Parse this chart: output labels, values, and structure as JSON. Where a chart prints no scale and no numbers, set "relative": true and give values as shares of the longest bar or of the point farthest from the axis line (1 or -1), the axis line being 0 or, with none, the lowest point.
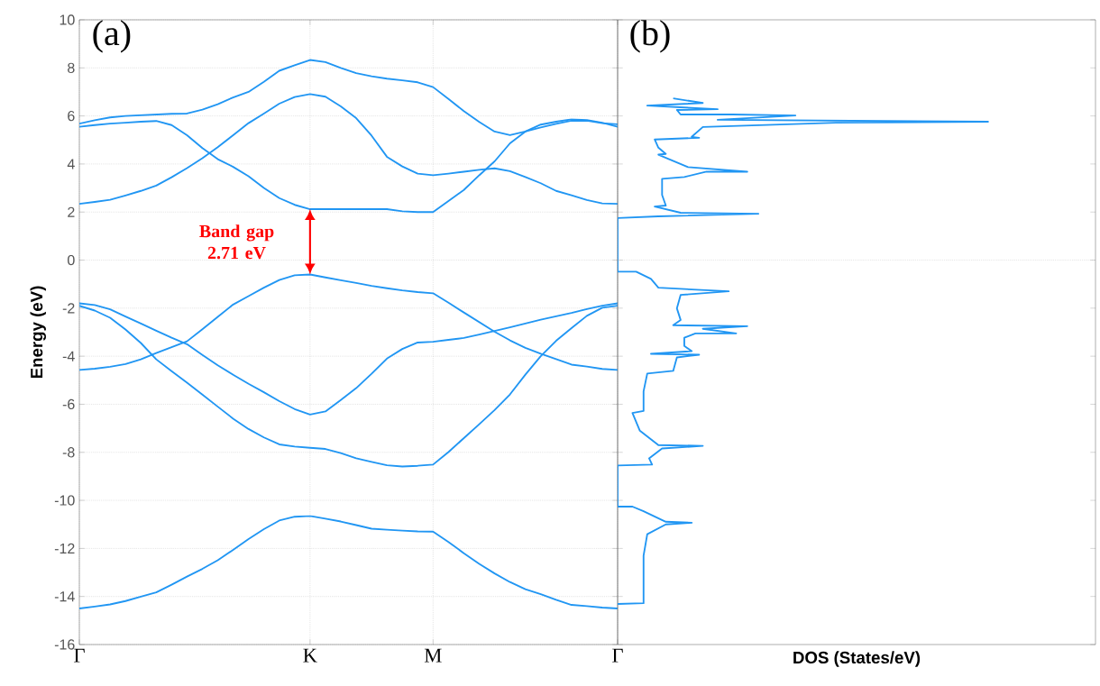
{
  "chart_data": [
    {
      "type": "line",
      "title": "(a)",
      "ylabel": "Energy (eV)",
      "categories": [
        "Γ",
        null,
        null,
        null,
        null,
        null,
        null,
        null,
        null,
        null,
        null,
        null,
        null,
        null,
        null,
        "K",
        null,
        null,
        null,
        null,
        null,
        null,
        null,
        "M",
        null,
        null,
        null,
        null,
        null,
        null,
        null,
        null,
        null,
        null,
        null,
        "Γ"
      ],
      "ylim": [
        -16,
        10
      ],
      "yticks": [
        -16,
        -14,
        -12,
        -10,
        -8,
        -6,
        -4,
        -2,
        0,
        2,
        4,
        6,
        8,
        10
      ],
      "grid": true,
      "marker": "none",
      "series": [
        {
          "color": "#2196f3",
          "values": [
            5.68,
            5.82,
            5.94,
            6.0,
            6.03,
            6.06,
            6.09,
            6.1,
            6.26,
            6.49,
            6.77,
            7.0,
            7.42,
            7.88,
            8.11,
            8.33,
            8.24,
            8.0,
            7.78,
            7.65,
            7.55,
            7.48,
            7.4,
            7.2,
            6.71,
            6.2,
            5.75,
            5.35,
            5.2,
            5.35,
            5.52,
            5.67,
            5.8,
            5.8,
            5.7,
            5.65
          ]
        },
        {
          "color": "#2196f3",
          "values": [
            5.55,
            5.62,
            5.68,
            5.72,
            5.76,
            5.79,
            5.62,
            5.2,
            4.66,
            4.2,
            3.88,
            3.49,
            3.0,
            2.58,
            2.3,
            2.12,
            2.12,
            2.12,
            2.12,
            2.12,
            2.12,
            2.03,
            2.0,
            2.0,
            2.46,
            2.92,
            3.53,
            4.11,
            4.86,
            5.35,
            5.64,
            5.76,
            5.86,
            5.83,
            5.72,
            5.55
          ]
        },
        {
          "color": "#2196f3",
          "values": [
            2.34,
            2.42,
            2.51,
            2.69,
            2.88,
            3.1,
            3.45,
            3.83,
            4.24,
            4.7,
            5.2,
            5.7,
            6.1,
            6.51,
            6.79,
            6.91,
            6.8,
            6.4,
            5.91,
            5.18,
            4.3,
            3.9,
            3.6,
            3.53,
            3.6,
            3.68,
            3.76,
            3.82,
            3.7,
            3.46,
            3.2,
            2.88,
            2.7,
            2.5,
            2.36,
            2.34
          ]
        },
        {
          "color": "#2196f3",
          "values": [
            -4.57,
            -4.52,
            -4.44,
            -4.33,
            -4.13,
            -3.87,
            -3.62,
            -3.38,
            -2.88,
            -2.36,
            -1.85,
            -1.5,
            -1.15,
            -0.83,
            -0.63,
            -0.6,
            -0.72,
            -0.84,
            -0.95,
            -1.07,
            -1.17,
            -1.26,
            -1.33,
            -1.38,
            -1.77,
            -2.18,
            -2.58,
            -2.98,
            -3.34,
            -3.65,
            -3.9,
            -4.12,
            -4.35,
            -4.43,
            -4.53,
            -4.57
          ]
        },
        {
          "color": "#2196f3",
          "values": [
            -1.8,
            -1.87,
            -2.05,
            -2.35,
            -2.64,
            -2.94,
            -3.23,
            -3.5,
            -3.95,
            -4.38,
            -4.77,
            -5.15,
            -5.5,
            -5.87,
            -6.2,
            -6.43,
            -6.3,
            -5.82,
            -5.33,
            -4.73,
            -4.1,
            -3.7,
            -3.43,
            -3.4,
            -3.32,
            -3.24,
            -3.1,
            -2.95,
            -2.8,
            -2.64,
            -2.48,
            -2.34,
            -2.2,
            -2.04,
            -1.9,
            -1.8
          ]
        },
        {
          "color": "#2196f3",
          "values": [
            -1.9,
            -2.1,
            -2.4,
            -2.89,
            -3.45,
            -4.13,
            -4.62,
            -5.1,
            -5.6,
            -6.1,
            -6.6,
            -7.03,
            -7.38,
            -7.67,
            -7.76,
            -7.81,
            -7.86,
            -8.03,
            -8.25,
            -8.4,
            -8.54,
            -8.59,
            -8.56,
            -8.51,
            -7.99,
            -7.41,
            -6.83,
            -6.24,
            -5.59,
            -4.77,
            -4.0,
            -3.36,
            -2.83,
            -2.32,
            -1.98,
            -1.9
          ]
        },
        {
          "color": "#2196f3",
          "values": [
            -14.5,
            -14.42,
            -14.33,
            -14.19,
            -14.01,
            -13.83,
            -13.51,
            -13.17,
            -12.85,
            -12.49,
            -12.06,
            -11.61,
            -11.2,
            -10.84,
            -10.68,
            -10.65,
            -10.76,
            -10.88,
            -11.03,
            -11.18,
            -11.22,
            -11.26,
            -11.29,
            -11.3,
            -11.73,
            -12.2,
            -12.64,
            -13.04,
            -13.4,
            -13.7,
            -13.9,
            -14.14,
            -14.35,
            -14.4,
            -14.46,
            -14.5
          ]
        }
      ],
      "annotations": [
        "Band gap 2.71 eV"
      ]
    },
    {
      "type": "line",
      "title": "(b)",
      "xlabel": "DOS (States/eV)",
      "orientation": "horizontal",
      "relative": true,
      "ylim": [
        -16,
        10
      ],
      "yticks": [
        -16,
        -14,
        -12,
        -10,
        -8,
        -6,
        -4,
        -2,
        0,
        2,
        4,
        6,
        8,
        10
      ],
      "tick_labels": false,
      "marker": "none",
      "ref_lines": [
        {
          "axis": "y",
          "value": 0
        }
      ],
      "series": [
        {
          "color": "#2196f3",
          "x": [
            6.73,
            6.54,
            6.43,
            6.28,
            6.25,
            6.06,
            6.06,
            6.02,
            5.84,
            5.76,
            5.72,
            5.54,
            5.13,
            5.09,
            5.02,
            4.68,
            4.42,
            4.39,
            3.87,
            3.68,
            3.68,
            3.46,
            3.38,
            2.71,
            2.27,
            2.23,
            1.97,
            1.93,
            1.82,
            1.75,
            -0.48,
            -0.48,
            -0.78,
            -1.15,
            -1.3,
            -1.45,
            -2.01,
            -2.49,
            -2.71,
            -2.75,
            -2.86,
            -3.05,
            -3.05,
            -3.23,
            -3.57,
            -3.79,
            -3.9,
            -3.94,
            -4.05,
            -4.61,
            -4.72,
            -5.46,
            -6.28,
            -6.36,
            -7.1,
            -7.7,
            -7.73,
            -7.84,
            -8.25,
            -8.51,
            -8.55,
            -10.26,
            -10.26,
            -10.45,
            -10.89,
            -10.93,
            -11.0,
            -11.41,
            -12.3,
            -14.28,
            -14.31
          ],
          "values": [
            0.15,
            0.23,
            0.08,
            0.27,
            0.16,
            0.17,
            0.31,
            0.48,
            0.27,
            1,
            0.59,
            0.23,
            0.2,
            0.22,
            0.1,
            0.11,
            0.13,
            0.11,
            0.19,
            0.35,
            0.24,
            0.18,
            0.12,
            0.12,
            0.13,
            0.1,
            0.17,
            0.38,
            0.11,
            0,
            0,
            0.05,
            0.09,
            0.11,
            0.3,
            0.17,
            0.16,
            0.17,
            0.15,
            0.35,
            0.23,
            0.32,
            0.21,
            0.18,
            0.18,
            0.2,
            0.09,
            0.22,
            0.16,
            0.15,
            0.08,
            0.07,
            0.07,
            0.04,
            0.06,
            0.11,
            0.23,
            0.12,
            0.085,
            0.093,
            0,
            0,
            0.04,
            0.07,
            0.13,
            0.2,
            0.13,
            0.08,
            0.07,
            0.07,
            0
          ]
        }
      ]
    }
  ]
}
